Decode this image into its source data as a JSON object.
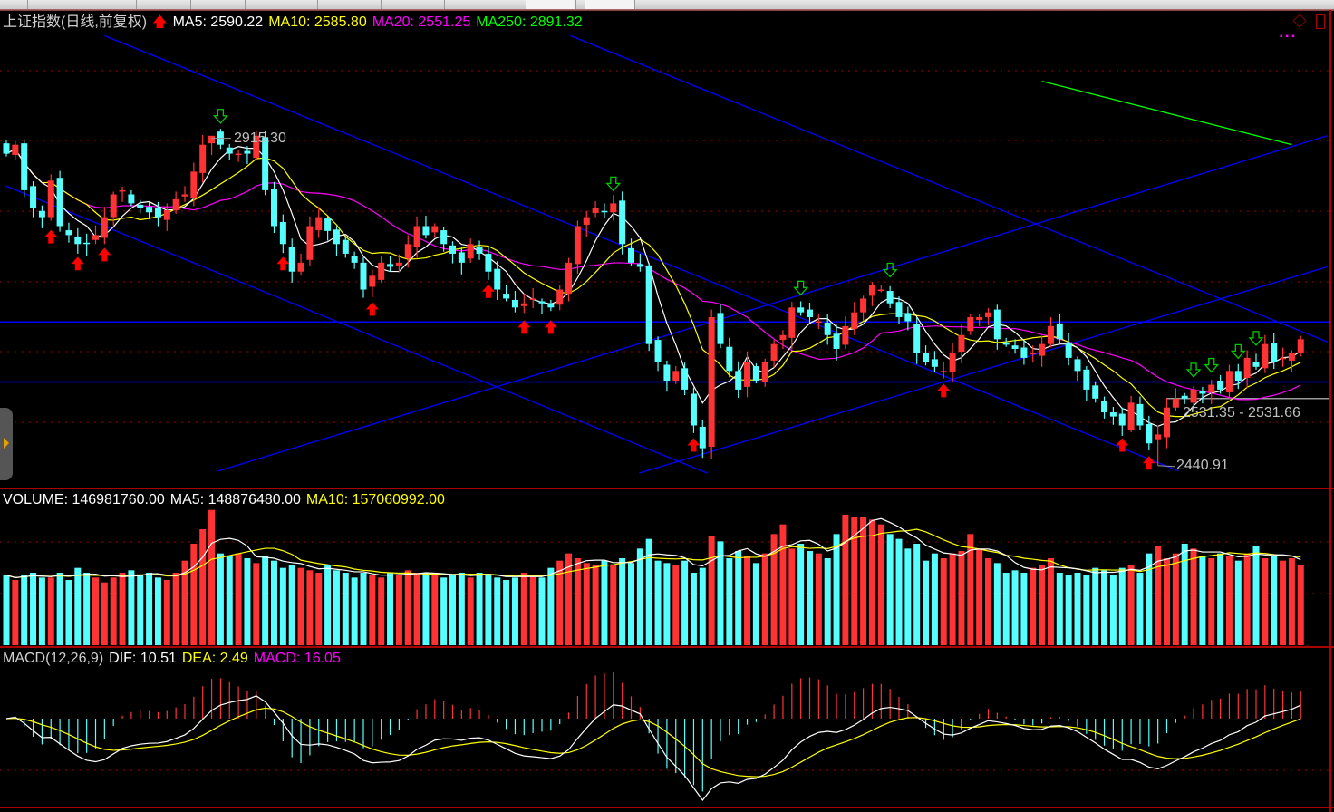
{
  "header": {
    "title": "上证指数(日线,前复权)",
    "ma5": "MA5: 2590.22",
    "ma10": "MA10: 2585.80",
    "ma20": "MA20: 2551.25",
    "ma250": "MA250: 2891.32"
  },
  "volume_header": {
    "volume": "VOLUME: 146981760.00",
    "ma5": "MA5: 148876480.00",
    "ma10": "MA10: 157060992.00"
  },
  "macd_header": {
    "params": "MACD(12,26,9)",
    "dif": "DIF: 10.51",
    "dea": "DEA: 2.49",
    "macd": "MACD: 16.05"
  },
  "labels": {
    "high": "2915.30",
    "low": "2440.91",
    "range": "2531.35 - 2531.66"
  },
  "colors": {
    "up": "#ff3333",
    "down": "#55ffff",
    "ma5": "#ffffff",
    "ma10": "#ffff00",
    "ma20": "#ff00ff",
    "ma250": "#00ff00",
    "trendline": "#0000ff",
    "grid": "#990000",
    "buy_arrow": "#ff0000",
    "sell_arrow": "#00cc00"
  },
  "chart_data": {
    "type": "candlestick",
    "price_range": [
      2409,
      3100
    ],
    "grid": true,
    "close": [
      2893,
      2906,
      2840,
      2814,
      2801,
      2854,
      2788,
      2775,
      2762,
      2762,
      2775,
      2801,
      2834,
      2840,
      2821,
      2814,
      2808,
      2801,
      2811,
      2827,
      2834,
      2867,
      2906,
      2919,
      2906,
      2893,
      2893,
      2893,
      2919,
      2840,
      2788,
      2762,
      2722,
      2735,
      2788,
      2801,
      2781,
      2762,
      2748,
      2735,
      2696,
      2716,
      2735,
      2729,
      2735,
      2762,
      2788,
      2775,
      2788,
      2762,
      2748,
      2735,
      2762,
      2748,
      2722,
      2696,
      2683,
      2670,
      2676,
      2683,
      2676,
      2670,
      2696,
      2735,
      2788,
      2801,
      2814,
      2808,
      2821,
      2762,
      2735,
      2729,
      2617,
      2591,
      2564,
      2578,
      2551,
      2499,
      2466,
      2656,
      2617,
      2578,
      2551,
      2591,
      2564,
      2591,
      2617,
      2630,
      2670,
      2663,
      2656,
      2650,
      2630,
      2610,
      2643,
      2663,
      2683,
      2702,
      2696,
      2676,
      2656,
      2650,
      2604,
      2591,
      2584,
      2578,
      2604,
      2630,
      2656,
      2656,
      2663,
      2624,
      2617,
      2610,
      2597,
      2604,
      2617,
      2643,
      2624,
      2597,
      2578,
      2551,
      2538,
      2518,
      2512,
      2499,
      2532,
      2499,
      2473,
      2486,
      2525,
      2538,
      2538,
      2551,
      2545,
      2558,
      2551,
      2578,
      2564,
      2597,
      2584,
      2617,
      2591,
      2597,
      2604,
      2624
    ],
    "volume_millions": [
      145,
      135,
      145,
      150,
      140,
      140,
      150,
      135,
      160,
      150,
      140,
      130,
      140,
      150,
      155,
      145,
      150,
      140,
      135,
      150,
      175,
      210,
      240,
      280,
      190,
      185,
      190,
      180,
      170,
      185,
      175,
      160,
      165,
      160,
      155,
      150,
      165,
      155,
      150,
      140,
      150,
      145,
      140,
      150,
      145,
      155,
      150,
      150,
      145,
      140,
      145,
      150,
      140,
      150,
      145,
      140,
      135,
      140,
      150,
      145,
      140,
      160,
      175,
      190,
      180,
      170,
      165,
      175,
      165,
      180,
      170,
      200,
      220,
      175,
      170,
      165,
      175,
      150,
      160,
      225,
      215,
      180,
      195,
      185,
      170,
      190,
      230,
      250,
      200,
      210,
      195,
      190,
      180,
      230,
      270,
      265,
      265,
      260,
      250,
      230,
      220,
      200,
      210,
      175,
      190,
      180,
      190,
      195,
      230,
      200,
      180,
      170,
      150,
      155,
      150,
      160,
      165,
      180,
      150,
      145,
      150,
      145,
      160,
      155,
      145,
      160,
      165,
      150,
      190,
      205,
      180,
      190,
      210,
      200,
      185,
      180,
      190,
      185,
      175,
      190,
      205,
      180,
      185,
      175,
      180,
      165
    ],
    "marked_high": {
      "index": 23,
      "value": 2915.3
    },
    "marked_low": {
      "index": 129,
      "value": 2440.91
    },
    "ma250_segment": [
      [
        116,
        2998
      ],
      [
        144,
        2906
      ]
    ],
    "buy_signals": [
      5,
      8,
      11,
      31,
      41,
      54,
      58,
      61,
      77,
      105,
      125,
      128
    ],
    "sell_signals": [
      24,
      68,
      89,
      99,
      133,
      135,
      138,
      140
    ],
    "trendlines": [
      [
        [
          11,
          3064
        ],
        [
          131.3,
          2433
        ]
      ],
      [
        [
          63.2,
          3064
        ],
        [
          148,
          2620
        ]
      ],
      [
        [
          -0.2,
          2847
        ],
        [
          78.5,
          2430
        ]
      ],
      [
        [
          23.7,
          2433
        ],
        [
          148,
          2919
        ]
      ],
      [
        [
          70.9,
          2430
        ],
        [
          148,
          2729
        ]
      ]
    ],
    "horizontal_lines": [
      2649,
      2562
    ],
    "range_line": {
      "from_index": 130,
      "value": 2538
    }
  }
}
